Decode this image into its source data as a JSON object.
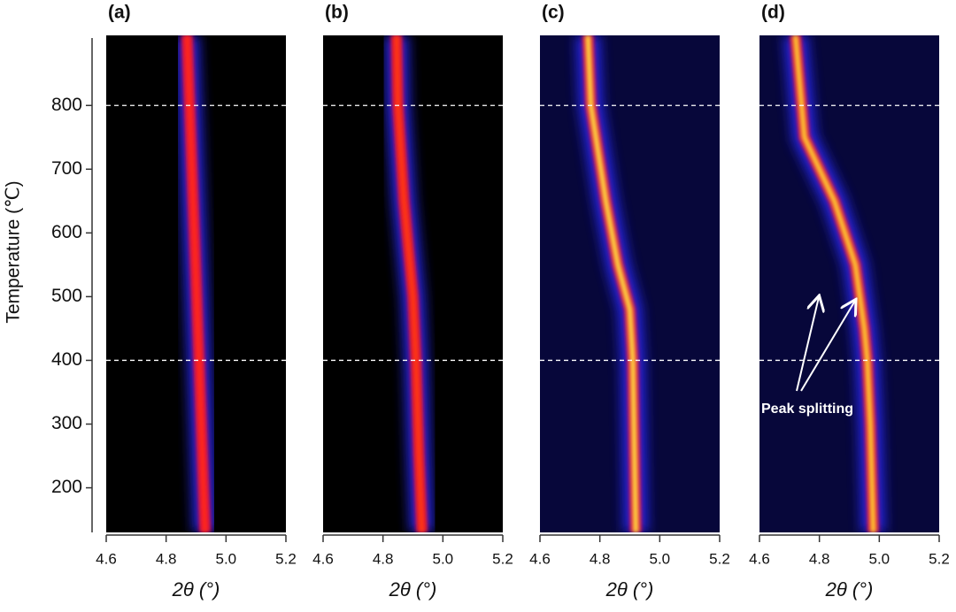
{
  "chart_data": [
    {
      "type": "line",
      "title": "(a)",
      "x_label": "2θ (°)",
      "y_label": "Temperature (℃)",
      "background": "#000000",
      "color": "#ff2a1a",
      "x": [
        4.87,
        4.89,
        4.91,
        4.93
      ],
      "values": [
        910,
        650,
        400,
        130
      ],
      "xlim": [
        4.6,
        5.2
      ],
      "xticks": [
        4.6,
        4.8,
        {
          "value": 5,
          "label": "5.0"
        },
        5.2
      ],
      "ylim": [
        130,
        910
      ],
      "yticks": [
        200,
        300,
        400,
        500,
        600,
        700,
        800
      ],
      "hlines": [
        400,
        800
      ]
    },
    {
      "type": "line",
      "title": "(b)",
      "x_label": "2θ (°)",
      "background": "#000000",
      "color": "#ff3a10",
      "x": [
        4.845,
        4.85,
        4.87,
        4.9,
        4.91,
        4.92,
        4.93
      ],
      "values": [
        910,
        800,
        650,
        500,
        400,
        250,
        130
      ],
      "xlim": [
        4.6,
        5.2
      ],
      "xticks": [
        4.6,
        4.8,
        {
          "value": 5,
          "label": "5.0"
        },
        5.2
      ],
      "ylim": [
        130,
        910
      ],
      "hlines": [
        400,
        800
      ]
    },
    {
      "type": "line",
      "title": "(c)",
      "x_label": "2θ (°)",
      "background": "#07073a",
      "color": "#ffe040",
      "x": [
        4.76,
        4.77,
        4.82,
        4.86,
        4.9,
        4.91,
        4.92
      ],
      "values": [
        910,
        800,
        650,
        550,
        480,
        400,
        130
      ],
      "xlim": [
        4.6,
        5.2
      ],
      "xticks": [
        4.6,
        4.8,
        {
          "value": 5,
          "label": "5.0"
        },
        5.2
      ],
      "ylim": [
        130,
        910
      ],
      "hlines": [
        400,
        800
      ]
    },
    {
      "type": "line",
      "title": "(d)",
      "x_label": "2θ (°)",
      "annotation": "Peak splitting",
      "background": "#07073a",
      "color": "#ffd030",
      "x": [
        4.72,
        4.75,
        4.85,
        4.92,
        4.95,
        4.96,
        4.97,
        4.98
      ],
      "values": [
        910,
        750,
        650,
        550,
        450,
        400,
        300,
        130
      ],
      "xlim": [
        4.6,
        5.2
      ],
      "xticks": [
        4.6,
        4.8,
        {
          "value": 5,
          "label": "5.0"
        },
        5.2
      ],
      "ylim": [
        130,
        910
      ],
      "hlines": [
        400,
        800
      ]
    }
  ]
}
